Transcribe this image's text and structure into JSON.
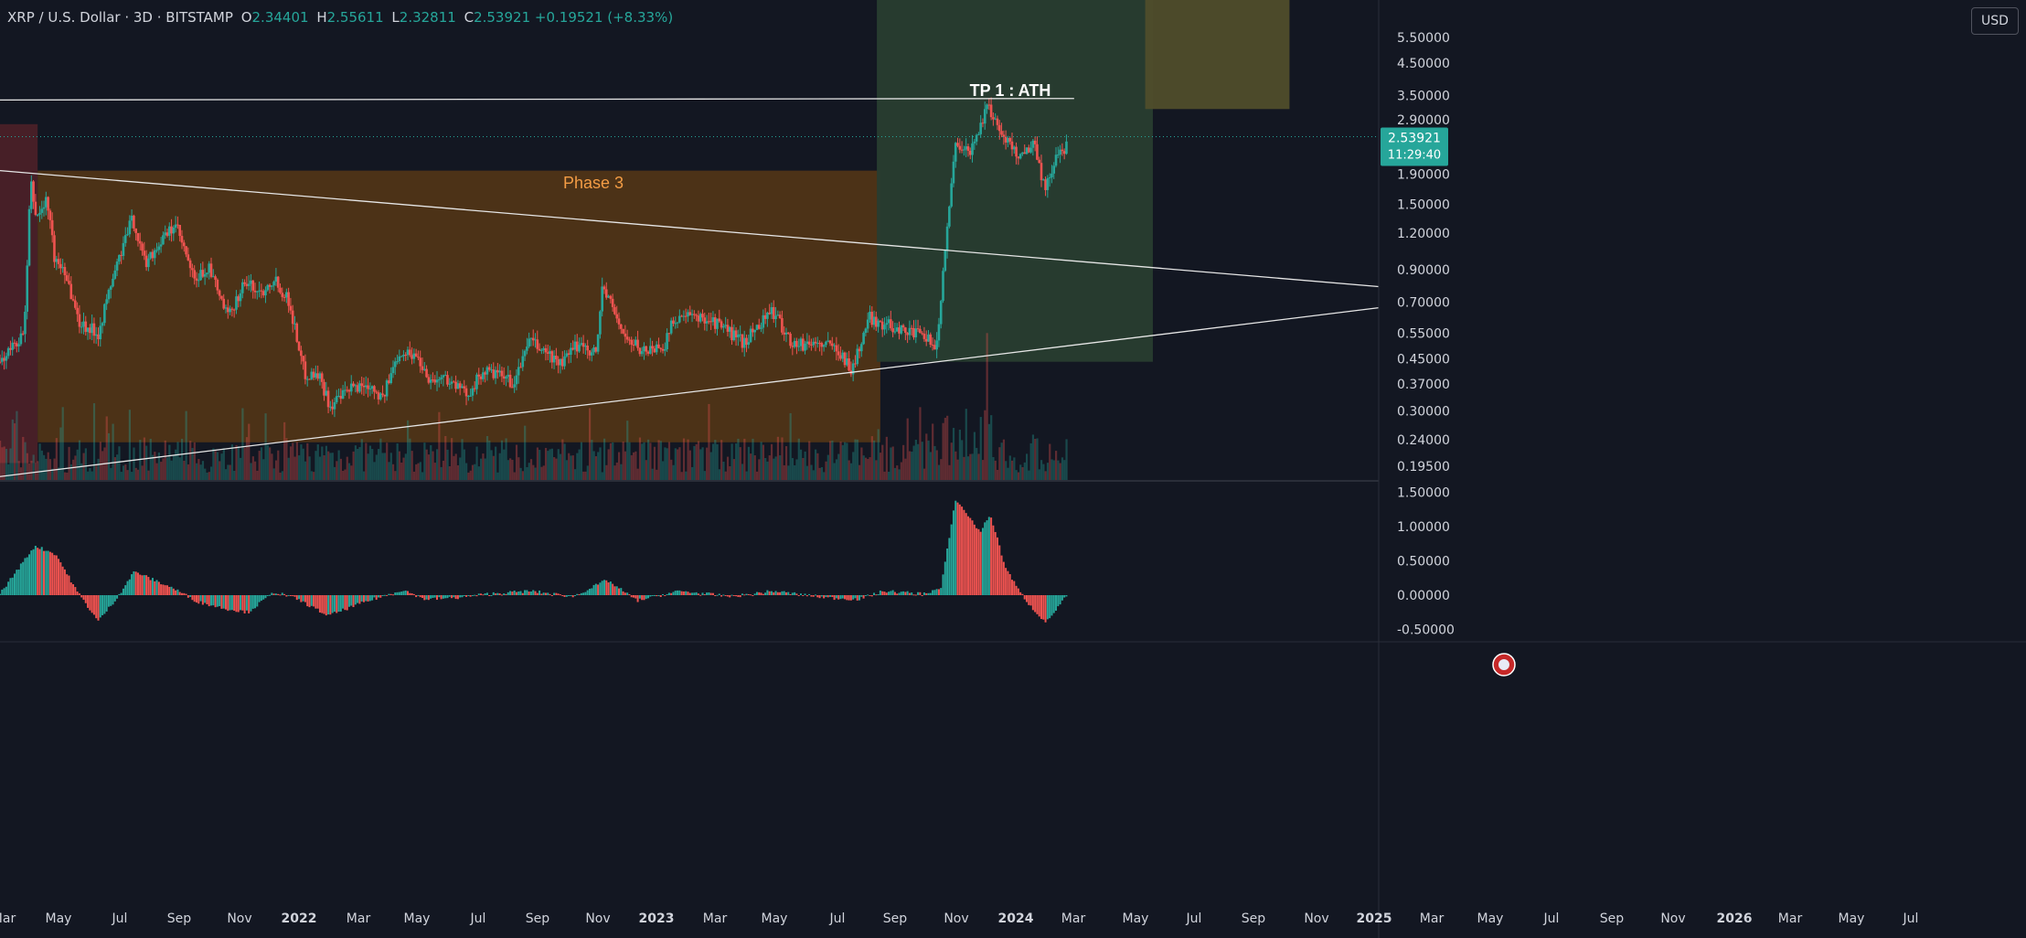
{
  "header": {
    "symbol": "XRP / U.S. Dollar · 3D · BITSTAMP",
    "open_label": "O",
    "open": "2.34401",
    "high_label": "H",
    "high": "2.55611",
    "low_label": "L",
    "low": "2.32811",
    "close_label": "C",
    "close": "2.53921",
    "change": "+0.19521 (+8.33%)"
  },
  "currency_button": "USD",
  "annotations": {
    "tp": "TP 1 : ATH",
    "phase": "Phase 3"
  },
  "price_label": {
    "price": "2.53921",
    "countdown": "11:29:40"
  },
  "colors": {
    "background": "#131722",
    "up": "#26a69a",
    "down": "#ef5350",
    "orange_zone": "#4f3417",
    "green_zone": "#283d30",
    "olive_zone": "#4f4d2b",
    "red_zone": "#4a2028",
    "phase_text": "#f39c45",
    "price_tag": "#26a69a"
  },
  "chart_data": {
    "type": "candlestick",
    "symbol": "XRP / U.S. Dollar",
    "interval": "3D",
    "exchange": "BITSTAMP",
    "y_scale": "log",
    "y_ticks": [
      "5.50000",
      "4.50000",
      "3.50000",
      "2.90000",
      "1.90000",
      "1.50000",
      "1.20000",
      "0.90000",
      "0.70000",
      "0.55000",
      "0.45000",
      "0.37000",
      "0.30000",
      "0.24000",
      "0.19500"
    ],
    "x_ticks": [
      "Mar",
      "May",
      "Jul",
      "Sep",
      "Nov",
      "2022",
      "Mar",
      "May",
      "Jul",
      "Sep",
      "Nov",
      "2023",
      "Mar",
      "May",
      "Jul",
      "Sep",
      "Nov",
      "2024",
      "Mar",
      "May",
      "Jul",
      "Sep",
      "Nov",
      "2025",
      "Mar",
      "May",
      "Jul",
      "Sep",
      "Nov",
      "2026",
      "Mar",
      "May",
      "Jul"
    ],
    "x_range": [
      "2021-03-01",
      "2026-07-31"
    ],
    "indicator_ticks": [
      "1.50000",
      "1.00000",
      "0.50000",
      "0.00000",
      "-0.50000"
    ],
    "path": [
      [
        "2021-03-01",
        0.44
      ],
      [
        "2021-04-05",
        0.55
      ],
      [
        "2021-04-14",
        1.8
      ],
      [
        "2021-04-22",
        1.35
      ],
      [
        "2021-05-08",
        1.55
      ],
      [
        "2021-05-19",
        0.95
      ],
      [
        "2021-06-01",
        0.92
      ],
      [
        "2021-06-22",
        0.6
      ],
      [
        "2021-07-20",
        0.55
      ],
      [
        "2021-08-10",
        0.85
      ],
      [
        "2021-09-07",
        1.35
      ],
      [
        "2021-09-25",
        0.95
      ],
      [
        "2021-10-15",
        1.1
      ],
      [
        "2021-11-08",
        1.28
      ],
      [
        "2021-12-05",
        0.82
      ],
      [
        "2021-12-25",
        0.92
      ],
      [
        "2022-01-22",
        0.62
      ],
      [
        "2022-02-15",
        0.82
      ],
      [
        "2022-03-10",
        0.75
      ],
      [
        "2022-03-29",
        0.85
      ],
      [
        "2022-04-20",
        0.7
      ],
      [
        "2022-05-12",
        0.4
      ],
      [
        "2022-06-01",
        0.4
      ],
      [
        "2022-06-18",
        0.31
      ],
      [
        "2022-07-20",
        0.36
      ],
      [
        "2022-08-15",
        0.37
      ],
      [
        "2022-09-01",
        0.33
      ],
      [
        "2022-09-25",
        0.48
      ],
      [
        "2022-10-20",
        0.46
      ],
      [
        "2022-11-09",
        0.38
      ],
      [
        "2022-12-01",
        0.39
      ],
      [
        "2022-12-30",
        0.34
      ],
      [
        "2023-01-25",
        0.41
      ],
      [
        "2023-02-20",
        0.39
      ],
      [
        "2023-03-10",
        0.37
      ],
      [
        "2023-03-28",
        0.52
      ],
      [
        "2023-04-20",
        0.48
      ],
      [
        "2023-05-15",
        0.43
      ],
      [
        "2023-06-10",
        0.51
      ],
      [
        "2023-07-05",
        0.47
      ],
      [
        "2023-07-13",
        0.8
      ],
      [
        "2023-08-17",
        0.52
      ],
      [
        "2023-09-11",
        0.48
      ],
      [
        "2023-10-10",
        0.5
      ],
      [
        "2023-10-25",
        0.62
      ],
      [
        "2023-11-15",
        0.62
      ],
      [
        "2023-12-10",
        0.62
      ],
      [
        "2024-01-05",
        0.57
      ],
      [
        "2024-02-01",
        0.51
      ],
      [
        "2024-03-11",
        0.66
      ],
      [
        "2024-04-13",
        0.5
      ],
      [
        "2024-05-15",
        0.51
      ],
      [
        "2024-06-15",
        0.49
      ],
      [
        "2024-07-05",
        0.41
      ],
      [
        "2024-07-30",
        0.62
      ],
      [
        "2024-08-20",
        0.59
      ],
      [
        "2024-09-15",
        0.57
      ],
      [
        "2024-10-10",
        0.54
      ],
      [
        "2024-11-05",
        0.5
      ],
      [
        "2024-11-16",
        1.1
      ],
      [
        "2024-12-02",
        2.5
      ],
      [
        "2024-12-20",
        2.2
      ],
      [
        "2025-01-15",
        3.2
      ],
      [
        "2025-01-27",
        2.9
      ],
      [
        "2025-02-10",
        2.5
      ],
      [
        "2025-03-01",
        2.2
      ],
      [
        "2025-03-25",
        2.4
      ],
      [
        "2025-04-07",
        1.7
      ],
      [
        "2025-04-25",
        2.15
      ],
      [
        "2025-05-10",
        2.4
      ]
    ],
    "osc_path": [
      [
        "2021-03-01",
        0.02
      ],
      [
        "2021-04-20",
        0.72
      ],
      [
        "2021-05-20",
        0.6
      ],
      [
        "2021-06-20",
        0.05
      ],
      [
        "2021-07-20",
        -0.38
      ],
      [
        "2021-08-15",
        -0.05
      ],
      [
        "2021-09-10",
        0.35
      ],
      [
        "2021-10-01",
        0.25
      ],
      [
        "2021-11-05",
        0.1
      ],
      [
        "2021-12-10",
        -0.1
      ],
      [
        "2022-01-20",
        -0.2
      ],
      [
        "2022-02-20",
        -0.25
      ],
      [
        "2022-03-30",
        0.05
      ],
      [
        "2022-04-30",
        -0.05
      ],
      [
        "2022-06-15",
        -0.3
      ],
      [
        "2022-08-01",
        -0.12
      ],
      [
        "2022-09-30",
        0.08
      ],
      [
        "2022-11-01",
        -0.06
      ],
      [
        "2022-12-15",
        -0.04
      ],
      [
        "2023-02-01",
        0.02
      ],
      [
        "2023-04-01",
        0.06
      ],
      [
        "2023-06-01",
        -0.02
      ],
      [
        "2023-07-20",
        0.22
      ],
      [
        "2023-09-01",
        -0.08
      ],
      [
        "2023-11-01",
        0.06
      ],
      [
        "2024-01-15",
        -0.02
      ],
      [
        "2024-03-15",
        0.06
      ],
      [
        "2024-06-01",
        -0.04
      ],
      [
        "2024-07-15",
        -0.06
      ],
      [
        "2024-08-20",
        0.06
      ],
      [
        "2024-10-15",
        0.02
      ],
      [
        "2024-11-10",
        0.1
      ],
      [
        "2024-12-01",
        1.4
      ],
      [
        "2024-12-20",
        1.15
      ],
      [
        "2025-01-05",
        0.92
      ],
      [
        "2025-01-20",
        1.18
      ],
      [
        "2025-02-10",
        0.42
      ],
      [
        "2025-03-01",
        0.08
      ],
      [
        "2025-03-20",
        -0.18
      ],
      [
        "2025-04-10",
        -0.4
      ],
      [
        "2025-05-10",
        0.0
      ]
    ],
    "trendlines": [
      {
        "from": [
          "2021-03-01",
          1.95
        ],
        "to": [
          "2026-07-31",
          0.79
        ]
      },
      {
        "from": [
          "2021-03-01",
          0.18
        ],
        "to": [
          "2026-07-31",
          0.67
        ]
      },
      {
        "from": [
          "2021-03-01",
          3.38
        ],
        "to": [
          "2025-05-20",
          3.42
        ]
      }
    ],
    "zones": [
      {
        "name": "red",
        "from": "2021-03-01",
        "to": "2021-04-24",
        "ymin": 0.2,
        "ymax": 2.8
      },
      {
        "name": "orange",
        "from": "2021-04-24",
        "to": "2024-08-15",
        "ymin": 0.235,
        "ymax": 1.95
      },
      {
        "name": "green",
        "from": "2024-08-10",
        "to": "2025-09-10",
        "ymin": 0.44,
        "ymax": 9.0
      },
      {
        "name": "olive",
        "from": "2025-08-30",
        "to": "2026-03-25",
        "ymin": 3.15,
        "ymax": 9.0
      }
    ],
    "current_price": 2.53921
  }
}
